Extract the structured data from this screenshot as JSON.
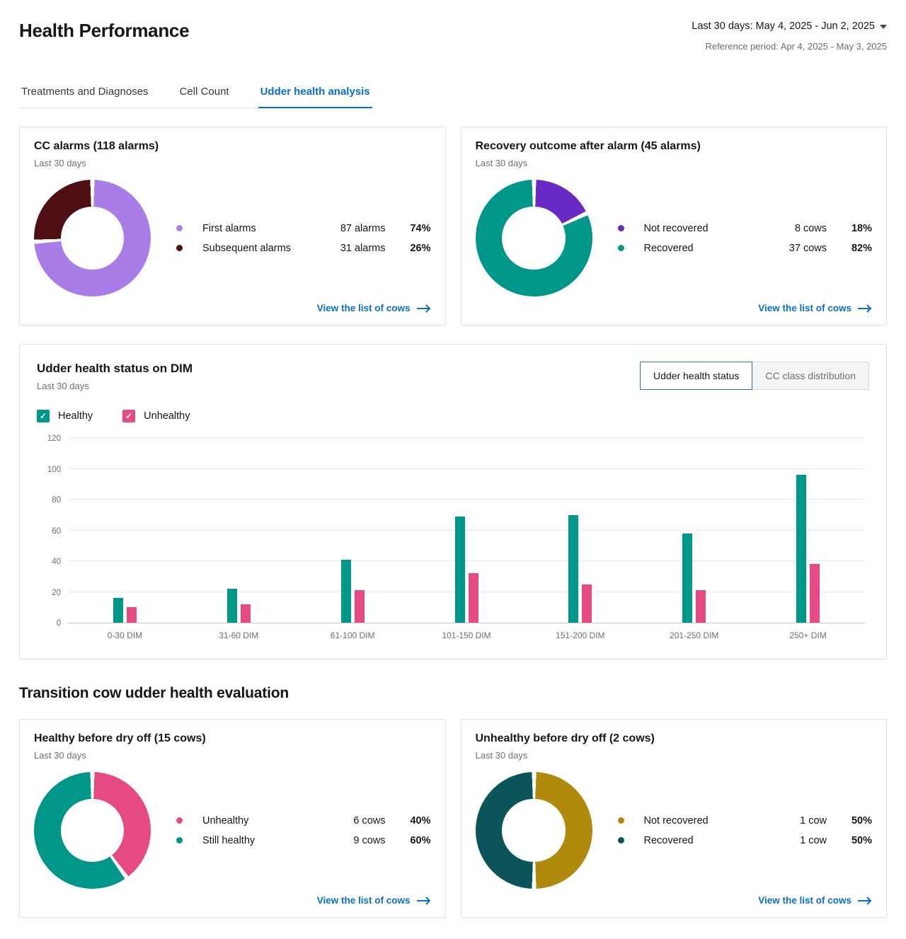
{
  "page": {
    "title": "Health Performance",
    "date_range": "Last 30 days: May 4, 2025 - Jun 2, 2025",
    "reference_period": "Reference period: Apr 4, 2025 - May 3, 2025"
  },
  "tabs": [
    {
      "label": "Treatments and Diagnoses",
      "active": false
    },
    {
      "label": "Cell Count",
      "active": false
    },
    {
      "label": "Udder health analysis",
      "active": true
    }
  ],
  "colors": {
    "link_blue": "#0a6ed1",
    "teal": "#00968a",
    "pink": "#e64a84"
  },
  "cards": {
    "cc_alarms": {
      "title": "CC alarms (118 alarms)",
      "subtitle": "Last 30 days",
      "link": "View the list of cows",
      "segments": [
        {
          "label": "First alarms",
          "value": "87 alarms",
          "pct_label": "74%",
          "pct": 74,
          "color": "#a87de8"
        },
        {
          "label": "Subsequent alarms",
          "value": "31 alarms",
          "pct_label": "26%",
          "pct": 26,
          "color": "#4f0e13"
        }
      ]
    },
    "recovery": {
      "title": "Recovery outcome after alarm (45 alarms)",
      "subtitle": "Last 30 days",
      "link": "View the list of cows",
      "segments": [
        {
          "label": "Not recovered",
          "value": "8 cows",
          "pct_label": "18%",
          "pct": 18,
          "color": "#6929c4"
        },
        {
          "label": "Recovered",
          "value": "37 cows",
          "pct_label": "82%",
          "pct": 82,
          "color": "#00968a"
        }
      ]
    },
    "healthy_dryoff": {
      "title": "Healthy before dry off (15 cows)",
      "subtitle": "Last 30 days",
      "link": "View the list of cows",
      "segments": [
        {
          "label": "Unhealthy",
          "value": "6 cows",
          "pct_label": "40%",
          "pct": 40,
          "color": "#e64a84"
        },
        {
          "label": "Still healthy",
          "value": "9 cows",
          "pct_label": "60%",
          "pct": 60,
          "color": "#00968a"
        }
      ]
    },
    "unhealthy_dryoff": {
      "title": "Unhealthy before dry off (2 cows)",
      "subtitle": "Last 30 days",
      "link": "View the list of cows",
      "segments": [
        {
          "label": "Not recovered",
          "value": "1 cow",
          "pct_label": "50%",
          "pct": 50,
          "color": "#b1890d"
        },
        {
          "label": "Recovered",
          "value": "1 cow",
          "pct_label": "50%",
          "pct": 50,
          "color": "#0b545a"
        }
      ]
    }
  },
  "dim_chart": {
    "title": "Udder health status on DIM",
    "subtitle": "Last 30 days",
    "buttons": [
      {
        "label": "Udder health status",
        "active": true
      },
      {
        "label": "CC class distribution",
        "active": false
      }
    ],
    "legend": [
      {
        "label": "Healthy",
        "color": "#00968a"
      },
      {
        "label": "Unhealthy",
        "color": "#e64a84"
      }
    ]
  },
  "transition_title": "Transition cow udder health evaluation",
  "chart_data": {
    "type": "bar",
    "title": "Udder health status on DIM",
    "subtitle": "Last 30 days",
    "categories": [
      "0-30 DIM",
      "31-60 DIM",
      "61-100 DIM",
      "101-150 DIM",
      "151-200 DIM",
      "201-250 DIM",
      "250+ DIM"
    ],
    "series": [
      {
        "name": "Healthy",
        "color": "#00968a",
        "values": [
          16,
          22,
          41,
          69,
          70,
          58,
          96
        ]
      },
      {
        "name": "Unhealthy",
        "color": "#e64a84",
        "values": [
          10,
          12,
          21,
          32,
          25,
          21,
          38
        ]
      }
    ],
    "xlabel": "",
    "ylabel": "",
    "ylim": [
      0,
      120
    ],
    "ytick_step": 20,
    "grid": true,
    "legend_position": "top-left"
  }
}
